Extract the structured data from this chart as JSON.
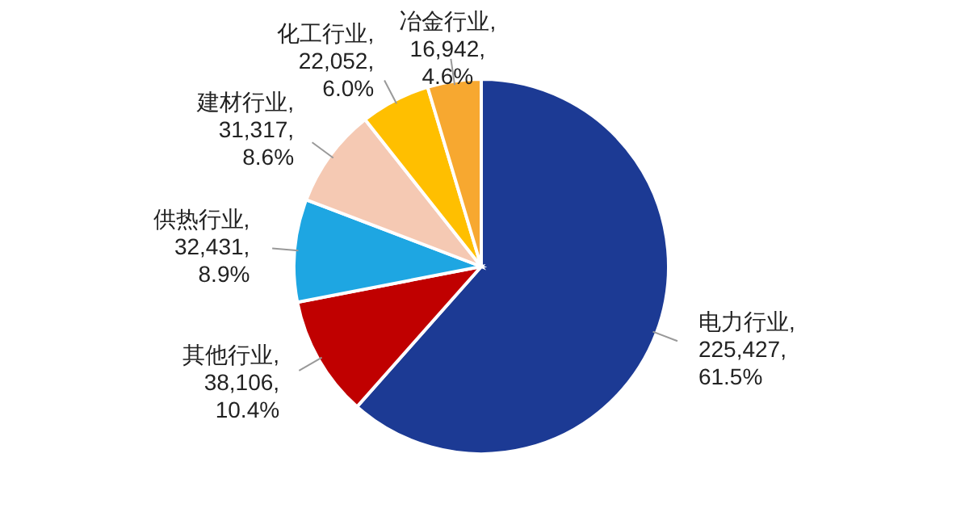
{
  "chart_data": {
    "type": "pie",
    "categories": [
      "电力行业",
      "其他行业",
      "供热行业",
      "建材行业",
      "化工行业",
      "冶金行业"
    ],
    "values": [
      225427,
      38106,
      32431,
      31317,
      22052,
      16942
    ],
    "value_labels": [
      ",\n225,427,\n61.5%",
      ",\n38,106,\n10.4%",
      ",\n32,431,\n8.9%",
      ",\n31,317,\n8.6%",
      ",\n22,052,\n6.0%",
      ",\n16,942,\n4.6%"
    ],
    "colors": [
      "#1c3a94",
      "#c00000",
      "#1ea6e2",
      "#f5c9b3",
      "#ffbf00",
      "#f7a830"
    ]
  }
}
